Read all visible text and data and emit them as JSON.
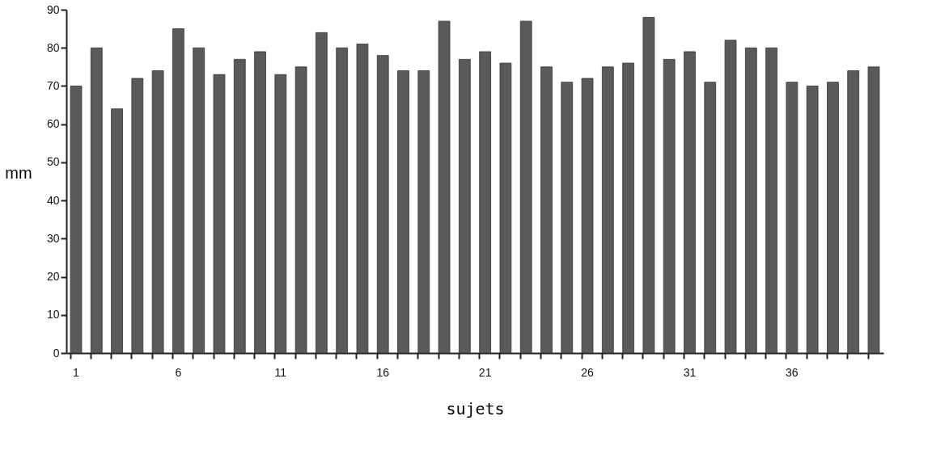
{
  "chart_data": {
    "type": "bar",
    "xlabel": "sujets",
    "ylabel": "mm",
    "categories": [
      "1",
      null,
      null,
      null,
      null,
      "6",
      null,
      null,
      null,
      null,
      "11",
      null,
      null,
      null,
      null,
      "16",
      null,
      null,
      null,
      null,
      "21",
      null,
      null,
      null,
      null,
      "26",
      null,
      null,
      null,
      null,
      "31",
      null,
      null,
      null,
      null,
      "36",
      null,
      null,
      null,
      null
    ],
    "values": [
      70,
      80,
      64,
      72,
      74,
      85,
      80,
      73,
      77,
      79,
      73,
      75,
      84,
      80,
      81,
      78,
      74,
      74,
      87,
      77,
      79,
      76,
      87,
      75,
      71,
      72,
      75,
      76,
      88,
      77,
      79,
      71,
      82,
      80,
      80,
      71,
      70,
      71,
      74,
      75
    ],
    "color": "#5a5a5a",
    "ylim": [
      0,
      90
    ],
    "yticks": [
      0,
      10,
      20,
      30,
      40,
      50,
      60,
      70,
      80,
      90
    ],
    "grid": false
  }
}
